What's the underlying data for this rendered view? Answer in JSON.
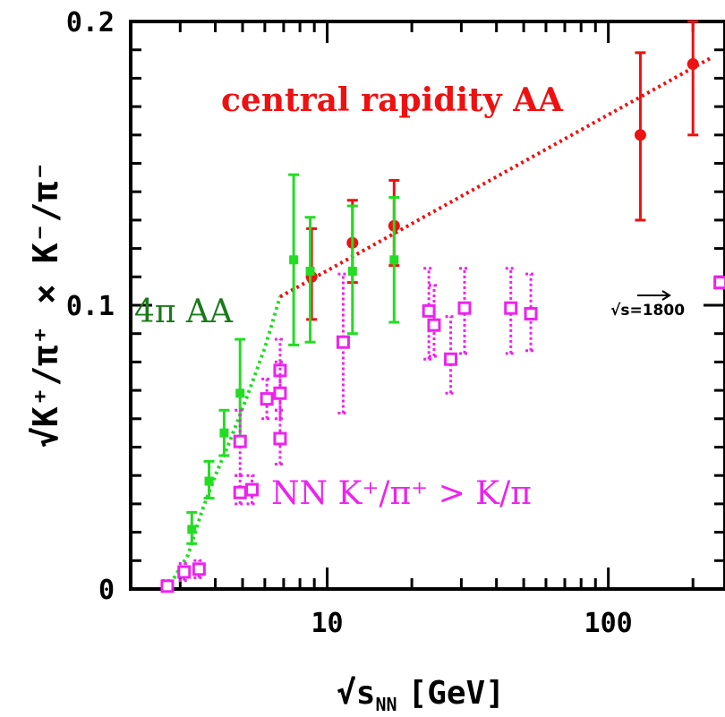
{
  "chart_data": {
    "type": "scatter",
    "x_scale": "log",
    "xlim": [
      2.0,
      260
    ],
    "ylim": [
      0,
      0.2
    ],
    "x_ticks": [
      10,
      100
    ],
    "x_tick_labels": [
      "10",
      "100"
    ],
    "y_ticks": [
      0,
      0.1,
      0.2
    ],
    "y_tick_labels": [
      "0",
      "0.1",
      "0.2"
    ],
    "xlabel": {
      "base": "√s",
      "sub": "NN",
      "rest": "[GeV]"
    },
    "ylabel": "√K⁺/π⁺ × K⁻/π⁻",
    "grid": false,
    "annotations": {
      "central": "central rapidity AA",
      "four_pi": "4π AA",
      "nn": "NN K⁺/π⁺ > K/π",
      "tevatron": "√s=1800"
    },
    "colors": {
      "central": "#ee1111",
      "four_pi": "#22dd22",
      "four_pi_label": "#1a7a1a",
      "nn": "#ee22ee"
    },
    "series": [
      {
        "key": "central",
        "marker": "circle",
        "points": [
          {
            "x": 8.8,
            "y": 0.11,
            "lo": 0.095,
            "hi": 0.127
          },
          {
            "x": 12.3,
            "y": 0.122,
            "lo": 0.108,
            "hi": 0.137
          },
          {
            "x": 17.3,
            "y": 0.128,
            "lo": 0.114,
            "hi": 0.144
          },
          {
            "x": 130,
            "y": 0.16,
            "lo": 0.13,
            "hi": 0.189
          },
          {
            "x": 200,
            "y": 0.185,
            "lo": 0.16,
            "hi": 0.2
          }
        ]
      },
      {
        "key": "four_pi",
        "marker": "square",
        "points": [
          {
            "x": 3.3,
            "y": 0.021,
            "lo": 0.016,
            "hi": 0.027
          },
          {
            "x": 3.8,
            "y": 0.038,
            "lo": 0.032,
            "hi": 0.045
          },
          {
            "x": 4.3,
            "y": 0.055,
            "lo": 0.047,
            "hi": 0.063
          },
          {
            "x": 4.9,
            "y": 0.069,
            "lo": 0.051,
            "hi": 0.088
          },
          {
            "x": 7.6,
            "y": 0.116,
            "lo": 0.086,
            "hi": 0.146
          },
          {
            "x": 8.7,
            "y": 0.112,
            "lo": 0.087,
            "hi": 0.131
          },
          {
            "x": 12.3,
            "y": 0.112,
            "lo": 0.09,
            "hi": 0.135
          },
          {
            "x": 17.3,
            "y": 0.116,
            "lo": 0.094,
            "hi": 0.138
          }
        ]
      },
      {
        "key": "nn",
        "marker": "open-square",
        "points": [
          {
            "x": 2.7,
            "y": 0.001,
            "lo": 0.0,
            "hi": 0.003
          },
          {
            "x": 3.1,
            "y": 0.006,
            "lo": 0.003,
            "hi": 0.009
          },
          {
            "x": 3.5,
            "y": 0.007,
            "lo": 0.004,
            "hi": 0.01
          },
          {
            "x": 4.9,
            "y": 0.052,
            "lo": 0.04,
            "hi": 0.063
          },
          {
            "x": 4.9,
            "y": 0.034,
            "lo": 0.03,
            "hi": 0.04
          },
          {
            "x": 5.4,
            "y": 0.035,
            "lo": 0.03,
            "hi": 0.04
          },
          {
            "x": 6.1,
            "y": 0.067,
            "lo": 0.06,
            "hi": 0.074
          },
          {
            "x": 6.8,
            "y": 0.077,
            "lo": 0.063,
            "hi": 0.088
          },
          {
            "x": 6.8,
            "y": 0.069,
            "lo": 0.06,
            "hi": 0.08
          },
          {
            "x": 6.8,
            "y": 0.053,
            "lo": 0.044,
            "hi": 0.063
          },
          {
            "x": 11.4,
            "y": 0.087,
            "lo": 0.062,
            "hi": 0.111
          },
          {
            "x": 23.0,
            "y": 0.098,
            "lo": 0.081,
            "hi": 0.113
          },
          {
            "x": 24.0,
            "y": 0.093,
            "lo": 0.082,
            "hi": 0.107
          },
          {
            "x": 27.5,
            "y": 0.081,
            "lo": 0.069,
            "hi": 0.096
          },
          {
            "x": 30.8,
            "y": 0.099,
            "lo": 0.083,
            "hi": 0.113
          },
          {
            "x": 45.0,
            "y": 0.099,
            "lo": 0.083,
            "hi": 0.113
          },
          {
            "x": 53.0,
            "y": 0.097,
            "lo": 0.084,
            "hi": 0.111
          },
          {
            "x": 250,
            "y": 0.108,
            "lo": 0.106,
            "hi": 0.11
          }
        ]
      }
    ],
    "fit_lines": [
      {
        "key": "four_pi",
        "points": [
          [
            2.7,
            0.0
          ],
          [
            3.2,
            0.012
          ],
          [
            3.6,
            0.028
          ],
          [
            4.0,
            0.04
          ],
          [
            4.5,
            0.052
          ],
          [
            5.2,
            0.068
          ],
          [
            6.0,
            0.085
          ],
          [
            6.8,
            0.103
          ]
        ]
      },
      {
        "key": "central",
        "points": [
          [
            6.8,
            0.103
          ],
          [
            230,
            0.187
          ]
        ]
      }
    ]
  }
}
